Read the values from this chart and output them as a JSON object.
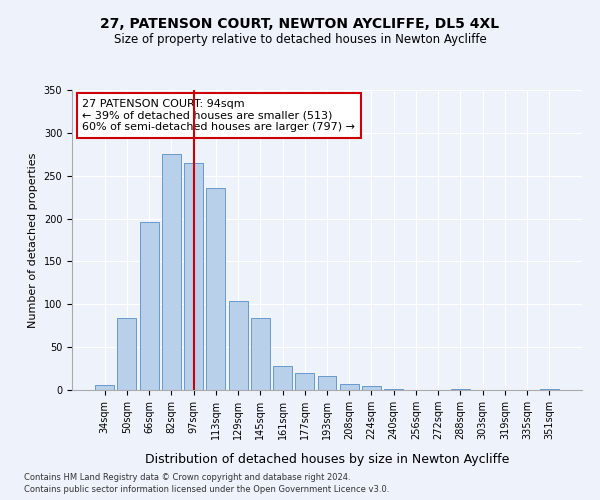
{
  "title": "27, PATENSON COURT, NEWTON AYCLIFFE, DL5 4XL",
  "subtitle": "Size of property relative to detached houses in Newton Aycliffe",
  "xlabel": "Distribution of detached houses by size in Newton Aycliffe",
  "ylabel": "Number of detached properties",
  "bar_labels": [
    "34sqm",
    "50sqm",
    "66sqm",
    "82sqm",
    "97sqm",
    "113sqm",
    "129sqm",
    "145sqm",
    "161sqm",
    "177sqm",
    "193sqm",
    "208sqm",
    "224sqm",
    "240sqm",
    "256sqm",
    "272sqm",
    "288sqm",
    "303sqm",
    "319sqm",
    "335sqm",
    "351sqm"
  ],
  "bar_values": [
    6,
    84,
    196,
    275,
    265,
    236,
    104,
    84,
    28,
    20,
    16,
    7,
    5,
    1,
    0,
    0,
    1,
    0,
    0,
    0,
    1
  ],
  "bar_color": "#b8d0ea",
  "bar_edge_color": "#6699cc",
  "vline_x_idx": 4,
  "vline_color": "#cc0000",
  "annotation_title": "27 PATENSON COURT: 94sqm",
  "annotation_line1": "← 39% of detached houses are smaller (513)",
  "annotation_line2": "60% of semi-detached houses are larger (797) →",
  "annotation_box_edgecolor": "#cc0000",
  "annotation_box_facecolor": "#ffffff",
  "ylim": [
    0,
    350
  ],
  "yticks": [
    0,
    50,
    100,
    150,
    200,
    250,
    300,
    350
  ],
  "footnote1": "Contains HM Land Registry data © Crown copyright and database right 2024.",
  "footnote2": "Contains public sector information licensed under the Open Government Licence v3.0.",
  "bg_color": "#eef2fb",
  "title_fontsize": 10,
  "subtitle_fontsize": 8.5,
  "ylabel_fontsize": 8,
  "xlabel_fontsize": 9,
  "tick_fontsize": 7,
  "annot_fontsize": 8,
  "footnote_fontsize": 6
}
